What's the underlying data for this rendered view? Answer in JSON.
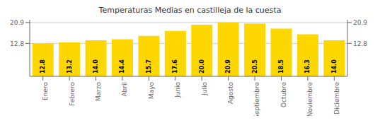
{
  "chart_data": {
    "type": "bar",
    "title": "Temperaturas Medias en castilleja de la cuesta",
    "categories": [
      "Enero",
      "Febrero",
      "Marzo",
      "Abril",
      "Mayo",
      "Junio",
      "Julio",
      "Agosto",
      "Septiembre",
      "Octubre",
      "Noviembre",
      "Diciembre"
    ],
    "values": [
      12.8,
      13.2,
      14.0,
      14.4,
      15.7,
      17.6,
      20.0,
      20.9,
      20.5,
      18.5,
      16.3,
      14.0
    ],
    "value_labels": [
      "12.8",
      "13.2",
      "14.0",
      "14.4",
      "15.7",
      "17.6",
      "20.0",
      "20.9",
      "20.5",
      "18.5",
      "16.3",
      "14.0"
    ],
    "data_labels": true,
    "color": "#FFD700",
    "ylim": [
      0,
      21.945
    ],
    "yticks": [
      12.8,
      20.9
    ],
    "y2lim": [
      0,
      21.945
    ],
    "y2ticks": [
      12.8,
      20.9
    ],
    "grid": true
  }
}
